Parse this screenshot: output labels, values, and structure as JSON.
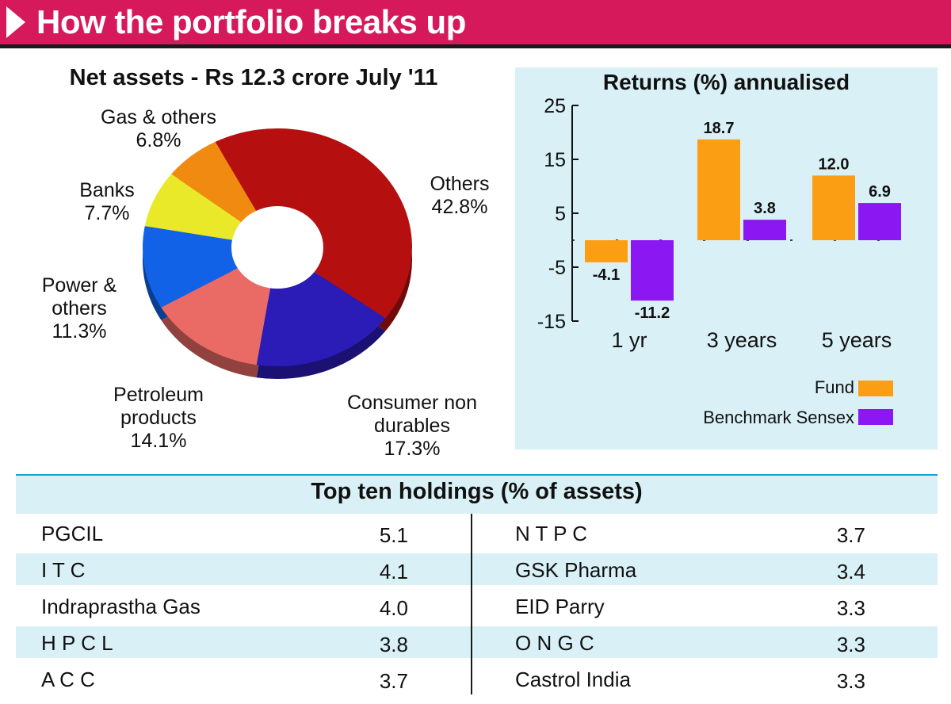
{
  "header": {
    "title": "How the portfolio breaks up"
  },
  "chart_data": [
    {
      "type": "pie",
      "title": "Net assets - Rs 12.3 crore July '11",
      "slices": [
        {
          "label_lines": [
            "Others",
            "42.8%"
          ],
          "value": 42.8,
          "color": "#b50f10"
        },
        {
          "label_lines": [
            "Consumer non",
            "durables",
            "17.3%"
          ],
          "value": 17.3,
          "color": "#2b1cb8"
        },
        {
          "label_lines": [
            "Petroleum",
            "products",
            "14.1%"
          ],
          "value": 14.1,
          "color": "#ea6b66"
        },
        {
          "label_lines": [
            "Power &",
            "others",
            "11.3%"
          ],
          "value": 11.3,
          "color": "#1262e8"
        },
        {
          "label_lines": [
            "Banks",
            "7.7%"
          ],
          "value": 7.7,
          "color": "#e9e92a"
        },
        {
          "label_lines": [
            "Gas & others",
            "6.8%"
          ],
          "value": 6.8,
          "color": "#f08a10"
        }
      ]
    },
    {
      "type": "bar",
      "title": "Returns (%) annualised",
      "categories": [
        "1 yr",
        "3 years",
        "5 years"
      ],
      "series": [
        {
          "name": "Fund",
          "values": [
            -4.1,
            18.7,
            12.0
          ],
          "labels": [
            "-4.1",
            "18.7",
            "12.0"
          ],
          "color": "#fb9e14"
        },
        {
          "name": "Benchmark Sensex",
          "values": [
            -11.2,
            3.8,
            6.9
          ],
          "labels": [
            "-11.2",
            "3.8",
            "6.9"
          ],
          "color": "#8b17f2"
        }
      ],
      "yticks": [
        25,
        15,
        5,
        -5,
        -15
      ],
      "ylim": [
        -15,
        25
      ]
    }
  ],
  "holdings": {
    "title": "Top ten holdings (% of assets)",
    "left": [
      {
        "name": "PGCIL",
        "value": "5.1"
      },
      {
        "name": "I T C",
        "value": "4.1"
      },
      {
        "name": "Indraprastha Gas",
        "value": "4.0"
      },
      {
        "name": "H P C L",
        "value": "3.8"
      },
      {
        "name": "A C C",
        "value": "3.7"
      }
    ],
    "right": [
      {
        "name": "N T P C",
        "value": "3.7"
      },
      {
        "name": "GSK Pharma",
        "value": "3.4"
      },
      {
        "name": "EID Parry",
        "value": "3.3"
      },
      {
        "name": "O N G C",
        "value": "3.3"
      },
      {
        "name": "Castrol India",
        "value": "3.3"
      }
    ]
  }
}
